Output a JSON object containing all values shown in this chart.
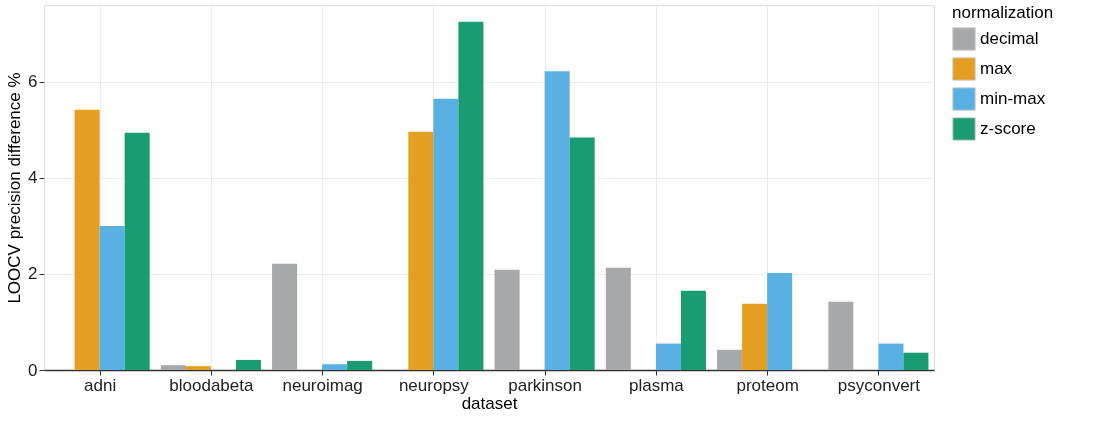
{
  "chart_data": {
    "type": "bar",
    "xlabel": "dataset",
    "ylabel": "LOOCV precision difference %",
    "legend_title": "normalization",
    "categories": [
      "adni",
      "bloodabeta",
      "neuroimag",
      "neuropsy",
      "parkinson",
      "plasma",
      "proteom",
      "psyconvert"
    ],
    "series": [
      {
        "name": "decimal",
        "color": "#a7a8aa",
        "values": [
          null,
          0.1,
          2.21,
          null,
          2.09,
          2.13,
          0.42,
          1.42
        ]
      },
      {
        "name": "max",
        "color": "#e49e21",
        "values": [
          5.42,
          0.08,
          null,
          4.96,
          null,
          null,
          1.38,
          null
        ]
      },
      {
        "name": "min-max",
        "color": "#59b1e3",
        "values": [
          3.0,
          null,
          0.12,
          5.65,
          6.22,
          0.55,
          2.02,
          0.55
        ]
      },
      {
        "name": "z-score",
        "color": "#1a9c72",
        "values": [
          4.94,
          0.21,
          0.19,
          7.25,
          4.84,
          1.65,
          null,
          0.36
        ]
      }
    ],
    "ylim": [
      0,
      7.6
    ],
    "yticks": [
      0,
      2,
      4,
      6
    ],
    "grid": true,
    "legend": "right"
  }
}
